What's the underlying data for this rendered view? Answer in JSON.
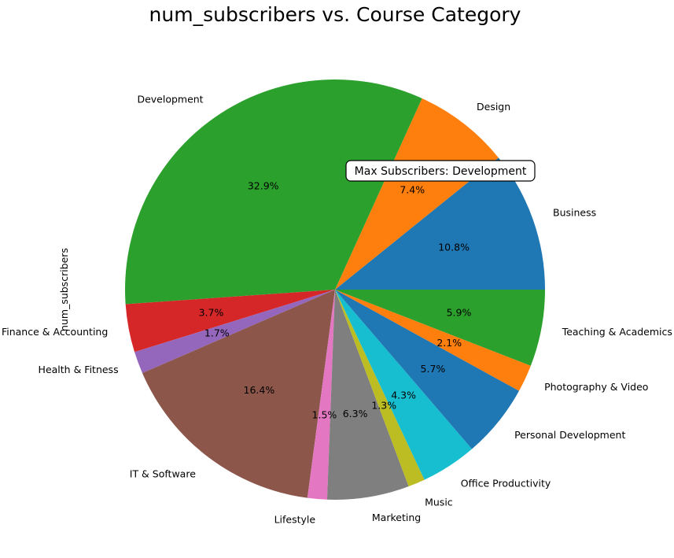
{
  "chart_data": {
    "type": "pie",
    "title": "num_subscribers vs. Course Category",
    "ylabel": "num_subscribers",
    "legend": "none",
    "annotation": "Max Subscribers: Development",
    "slices": [
      {
        "label": "Business",
        "percent": 10.8,
        "percent_label": "10.8%",
        "color": "#1f77b4"
      },
      {
        "label": "Design",
        "percent": 7.4,
        "percent_label": "7.4%",
        "color": "#ff7f0e"
      },
      {
        "label": "Development",
        "percent": 32.9,
        "percent_label": "32.9%",
        "color": "#2ca02c"
      },
      {
        "label": "Finance & Accounting",
        "percent": 3.7,
        "percent_label": "3.7%",
        "color": "#d62728"
      },
      {
        "label": "Health & Fitness",
        "percent": 1.7,
        "percent_label": "1.7%",
        "color": "#9467bd"
      },
      {
        "label": "IT & Software",
        "percent": 16.4,
        "percent_label": "16.4%",
        "color": "#8c564b"
      },
      {
        "label": "Lifestyle",
        "percent": 1.5,
        "percent_label": "1.5%",
        "color": "#e377c2"
      },
      {
        "label": "Marketing",
        "percent": 6.3,
        "percent_label": "6.3%",
        "color": "#7f7f7f"
      },
      {
        "label": "Music",
        "percent": 1.3,
        "percent_label": "1.3%",
        "color": "#bcbd22"
      },
      {
        "label": "Office Productivity",
        "percent": 4.3,
        "percent_label": "4.3%",
        "color": "#17becf"
      },
      {
        "label": "Personal Development",
        "percent": 5.7,
        "percent_label": "5.7%",
        "color": "#1f77b4"
      },
      {
        "label": "Photography & Video",
        "percent": 2.1,
        "percent_label": "2.1%",
        "color": "#ff7f0e"
      },
      {
        "label": "Teaching & Academics",
        "percent": 5.9,
        "percent_label": "5.9%",
        "color": "#2ca02c"
      }
    ]
  }
}
